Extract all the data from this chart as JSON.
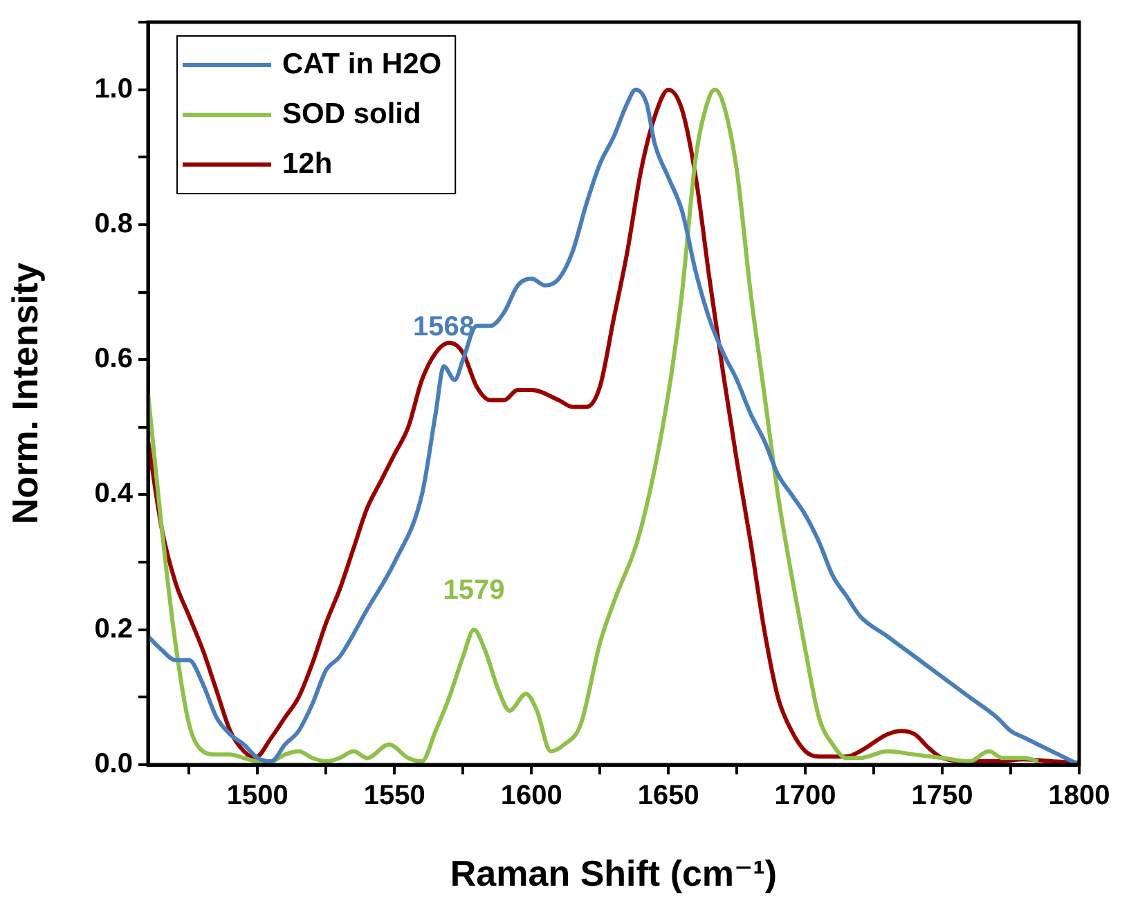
{
  "chart_data": {
    "type": "line",
    "xlabel": "Raman Shift (cm⁻¹)",
    "ylabel": "Norm. Intensity",
    "xlim": [
      1460,
      1800
    ],
    "ylim": [
      0,
      1.1
    ],
    "xticks": [
      {
        "value": 1475,
        "label": null
      },
      1500,
      {
        "value": 1525,
        "label": null
      },
      1550,
      {
        "value": 1575,
        "label": null
      },
      1600,
      {
        "value": 1625,
        "label": null
      },
      1650,
      {
        "value": 1675,
        "label": null
      },
      1700,
      {
        "value": 1725,
        "label": null
      },
      1750,
      {
        "value": 1775,
        "label": null
      },
      1800
    ],
    "yticks": [
      {
        "value": 0,
        "label": "0.0"
      },
      {
        "value": 0.1,
        "label": null
      },
      {
        "value": 0.2,
        "label": "0.2"
      },
      {
        "value": 0.3,
        "label": null
      },
      {
        "value": 0.4,
        "label": "0.4"
      },
      {
        "value": 0.5,
        "label": null
      },
      {
        "value": 0.6,
        "label": "0.6"
      },
      {
        "value": 0.7,
        "label": null
      },
      {
        "value": 0.8,
        "label": "0.8"
      },
      {
        "value": 0.9,
        "label": null
      },
      {
        "value": 1.0,
        "label": "1.0"
      },
      {
        "value": 1.1,
        "label": null
      }
    ],
    "grid": false,
    "legend": "top left",
    "series": [
      {
        "name": "CAT in H2O",
        "color": "#4a7ebb",
        "x": [
          1460,
          1465,
          1470,
          1475,
          1480,
          1485,
          1490,
          1495,
          1500,
          1505,
          1510,
          1515,
          1520,
          1525,
          1530,
          1540,
          1550,
          1560,
          1565,
          1568,
          1572,
          1575,
          1580,
          1585,
          1590,
          1595,
          1600,
          1605,
          1610,
          1615,
          1620,
          1625,
          1630,
          1635,
          1638,
          1642,
          1645,
          1650,
          1655,
          1660,
          1665,
          1670,
          1675,
          1680,
          1685,
          1690,
          1695,
          1700,
          1705,
          1710,
          1715,
          1720,
          1730,
          1740,
          1750,
          1760,
          1770,
          1775,
          1780,
          1790,
          1800
        ],
        "values": [
          0.19,
          0.17,
          0.155,
          0.155,
          0.12,
          0.07,
          0.045,
          0.03,
          0.01,
          0.005,
          0.03,
          0.05,
          0.09,
          0.14,
          0.16,
          0.23,
          0.3,
          0.4,
          0.52,
          0.59,
          0.57,
          0.6,
          0.65,
          0.65,
          0.67,
          0.71,
          0.72,
          0.71,
          0.72,
          0.76,
          0.83,
          0.89,
          0.93,
          0.98,
          1.0,
          0.98,
          0.92,
          0.87,
          0.82,
          0.73,
          0.66,
          0.61,
          0.57,
          0.52,
          0.48,
          0.43,
          0.4,
          0.37,
          0.33,
          0.28,
          0.25,
          0.22,
          0.19,
          0.16,
          0.13,
          0.1,
          0.07,
          0.05,
          0.04,
          0.02,
          0.0
        ]
      },
      {
        "name": "SOD solid",
        "color": "#8fc04a",
        "x": [
          1460,
          1465,
          1470,
          1475,
          1480,
          1485,
          1490,
          1495,
          1500,
          1505,
          1510,
          1515,
          1520,
          1525,
          1530,
          1535,
          1540,
          1548,
          1555,
          1560,
          1565,
          1570,
          1575,
          1579,
          1583,
          1588,
          1592,
          1598,
          1602,
          1607,
          1612,
          1618,
          1625,
          1630,
          1640,
          1650,
          1655,
          1660,
          1665,
          1667,
          1670,
          1675,
          1680,
          1685,
          1690,
          1695,
          1700,
          1705,
          1710,
          1715,
          1720,
          1730,
          1740,
          1750,
          1760,
          1767,
          1772,
          1780,
          1785
        ],
        "values": [
          0.55,
          0.35,
          0.18,
          0.06,
          0.02,
          0.015,
          0.015,
          0.01,
          0.005,
          0.005,
          0.015,
          0.02,
          0.01,
          0.005,
          0.01,
          0.02,
          0.01,
          0.03,
          0.01,
          0.005,
          0.05,
          0.1,
          0.16,
          0.2,
          0.17,
          0.11,
          0.08,
          0.105,
          0.08,
          0.02,
          0.03,
          0.06,
          0.18,
          0.24,
          0.35,
          0.55,
          0.7,
          0.9,
          0.99,
          1.0,
          0.98,
          0.88,
          0.7,
          0.55,
          0.4,
          0.28,
          0.17,
          0.07,
          0.03,
          0.01,
          0.01,
          0.02,
          0.015,
          0.01,
          0.005,
          0.02,
          0.01,
          0.01,
          0.005
        ]
      },
      {
        "name": "12h",
        "color": "#990000",
        "x": [
          1460,
          1465,
          1470,
          1475,
          1480,
          1485,
          1490,
          1495,
          1499,
          1505,
          1510,
          1515,
          1520,
          1525,
          1530,
          1535,
          1540,
          1545,
          1550,
          1555,
          1560,
          1565,
          1570,
          1575,
          1580,
          1585,
          1590,
          1595,
          1600,
          1610,
          1615,
          1620,
          1625,
          1630,
          1635,
          1640,
          1645,
          1650,
          1655,
          1660,
          1665,
          1670,
          1675,
          1680,
          1685,
          1690,
          1695,
          1700,
          1705,
          1715,
          1720,
          1730,
          1735,
          1740,
          1745,
          1750,
          1760,
          1770,
          1780,
          1790,
          1800
        ],
        "values": [
          0.48,
          0.35,
          0.27,
          0.22,
          0.17,
          0.11,
          0.05,
          0.02,
          0.01,
          0.04,
          0.07,
          0.1,
          0.15,
          0.21,
          0.26,
          0.32,
          0.38,
          0.42,
          0.46,
          0.5,
          0.57,
          0.61,
          0.625,
          0.61,
          0.56,
          0.54,
          0.54,
          0.555,
          0.555,
          0.54,
          0.53,
          0.53,
          0.56,
          0.66,
          0.76,
          0.88,
          0.96,
          1.0,
          0.97,
          0.87,
          0.72,
          0.58,
          0.45,
          0.33,
          0.2,
          0.1,
          0.05,
          0.02,
          0.012,
          0.012,
          0.02,
          0.045,
          0.05,
          0.045,
          0.025,
          0.01,
          0.005,
          0.005,
          0.008,
          0.005,
          0.003
        ]
      }
    ],
    "annotations": [
      {
        "text": "1568",
        "x": 1568,
        "y": 0.59
      },
      {
        "text": "1579",
        "x": 1579,
        "y": 0.2
      }
    ]
  }
}
